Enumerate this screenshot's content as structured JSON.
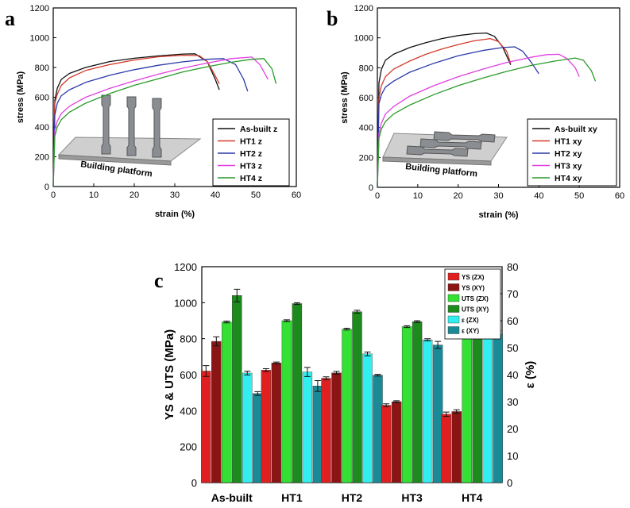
{
  "chart_data": [
    {
      "panel_label": "a",
      "type": "line",
      "xlabel": "strain (%)",
      "ylabel": "stress (MPa)",
      "xlim": [
        0,
        60
      ],
      "ylim": [
        0,
        1200
      ],
      "xticks": [
        0,
        10,
        20,
        30,
        40,
        50,
        60
      ],
      "yticks": [
        0,
        200,
        400,
        600,
        800,
        1000,
        1200
      ],
      "legend_position": "bottom-right",
      "inset_label": "Building platform",
      "series": [
        {
          "name": "As-built z",
          "color": "#111111",
          "x": [
            0,
            0.4,
            1,
            2,
            4,
            8,
            14,
            20,
            26,
            32,
            35,
            38,
            40,
            41
          ],
          "y": [
            0,
            580,
            660,
            720,
            760,
            800,
            840,
            862,
            878,
            890,
            892,
            840,
            720,
            650
          ]
        },
        {
          "name": "HT1 z",
          "color": "#d23a2a",
          "x": [
            0,
            0.4,
            1,
            2,
            4,
            8,
            14,
            20,
            26,
            32,
            36,
            38,
            39.5,
            41
          ],
          "y": [
            0,
            560,
            620,
            680,
            730,
            780,
            820,
            850,
            872,
            882,
            880,
            840,
            770,
            690
          ]
        },
        {
          "name": "HT2 z",
          "color": "#2a3aa8",
          "x": [
            0,
            0.4,
            1,
            2,
            4,
            8,
            14,
            20,
            26,
            32,
            38,
            42,
            45,
            47,
            48
          ],
          "y": [
            0,
            480,
            560,
            610,
            650,
            700,
            748,
            785,
            815,
            838,
            855,
            860,
            820,
            720,
            640
          ]
        },
        {
          "name": "HT3 z",
          "color": "#e040e0",
          "x": [
            0,
            0.4,
            1,
            2,
            4,
            8,
            14,
            20,
            26,
            32,
            38,
            44,
            49,
            51,
            53
          ],
          "y": [
            0,
            380,
            440,
            490,
            540,
            600,
            660,
            710,
            755,
            795,
            830,
            860,
            870,
            820,
            720
          ]
        },
        {
          "name": "HT4 z",
          "color": "#2a9a2a",
          "x": [
            0,
            0.4,
            1,
            2,
            4,
            8,
            14,
            20,
            26,
            32,
            38,
            44,
            49,
            52,
            54,
            55
          ],
          "y": [
            0,
            340,
            400,
            450,
            500,
            560,
            625,
            680,
            725,
            770,
            805,
            835,
            855,
            860,
            790,
            690
          ]
        }
      ]
    },
    {
      "panel_label": "b",
      "type": "line",
      "xlabel": "strain (%)",
      "ylabel": "stress (MPa)",
      "xlim": [
        0,
        60
      ],
      "ylim": [
        0,
        1200
      ],
      "xticks": [
        0,
        10,
        20,
        30,
        40,
        50,
        60
      ],
      "yticks": [
        0,
        200,
        400,
        600,
        800,
        1000,
        1200
      ],
      "legend_position": "bottom-right",
      "inset_label": "Building platform",
      "series": [
        {
          "name": "As-built xy",
          "color": "#111111",
          "x": [
            0,
            0.4,
            1,
            2,
            4,
            8,
            12,
            16,
            20,
            24,
            27,
            29,
            31,
            33
          ],
          "y": [
            0,
            700,
            790,
            850,
            890,
            935,
            968,
            995,
            1015,
            1028,
            1032,
            1010,
            940,
            820
          ]
        },
        {
          "name": "HT1 xy",
          "color": "#d23a2a",
          "x": [
            0,
            0.4,
            1,
            2,
            4,
            8,
            12,
            16,
            20,
            24,
            28,
            30,
            32,
            33
          ],
          "y": [
            0,
            600,
            680,
            740,
            790,
            845,
            890,
            925,
            955,
            980,
            995,
            975,
            910,
            830
          ]
        },
        {
          "name": "HT2 xy",
          "color": "#2a3aa8",
          "x": [
            0,
            0.4,
            1,
            2,
            4,
            8,
            14,
            20,
            26,
            31,
            34,
            36,
            38,
            40
          ],
          "y": [
            0,
            560,
            620,
            670,
            710,
            770,
            830,
            880,
            915,
            935,
            940,
            910,
            840,
            760
          ]
        },
        {
          "name": "HT3 xy",
          "color": "#e040e0",
          "x": [
            0,
            0.4,
            1,
            2,
            4,
            8,
            14,
            20,
            26,
            32,
            38,
            42,
            45,
            47,
            49,
            50
          ],
          "y": [
            0,
            360,
            430,
            490,
            540,
            610,
            680,
            740,
            790,
            835,
            870,
            888,
            890,
            860,
            800,
            740
          ]
        },
        {
          "name": "HT4 xy",
          "color": "#2a9a2a",
          "x": [
            0,
            0.4,
            1,
            2,
            4,
            8,
            14,
            20,
            26,
            32,
            38,
            44,
            49,
            51,
            53,
            54
          ],
          "y": [
            0,
            330,
            390,
            440,
            490,
            550,
            620,
            680,
            730,
            775,
            815,
            845,
            865,
            850,
            780,
            710
          ]
        }
      ]
    },
    {
      "panel_label": "c",
      "type": "bar",
      "categories": [
        "As-built",
        "HT1",
        "HT2",
        "HT3",
        "HT4"
      ],
      "ylabel": "YS & UTS (MPa)",
      "y2label": "ε (%)",
      "ylim": [
        0,
        1200
      ],
      "y2lim": [
        0,
        80
      ],
      "yticks": [
        0,
        200,
        400,
        600,
        800,
        1000,
        1200
      ],
      "y2ticks": [
        0,
        10,
        20,
        30,
        40,
        50,
        60,
        70,
        80
      ],
      "legend_position": "top-right",
      "series": [
        {
          "name": "YS (ZX)",
          "axis": "left",
          "color": "#e02020",
          "values": [
            620,
            625,
            580,
            430,
            380
          ],
          "errors": [
            30,
            8,
            8,
            8,
            12
          ]
        },
        {
          "name": "YS (XY)",
          "axis": "left",
          "color": "#8b1515",
          "values": [
            785,
            665,
            610,
            450,
            395
          ],
          "errors": [
            25,
            5,
            8,
            5,
            10
          ]
        },
        {
          "name": "UTS (ZX)",
          "axis": "left",
          "color": "#33e033",
          "values": [
            893,
            900,
            853,
            867,
            850
          ],
          "errors": [
            5,
            5,
            5,
            5,
            5
          ]
        },
        {
          "name": "UTS (XY)",
          "axis": "left",
          "color": "#1c8a1c",
          "values": [
            1040,
            995,
            950,
            895,
            885
          ],
          "errors": [
            35,
            5,
            8,
            5,
            20
          ]
        },
        {
          "name": "ε (ZX)",
          "axis": "right",
          "color": "#33eeee",
          "values": [
            40.6,
            41,
            47.7,
            52.9,
            54.6
          ],
          "errors": [
            0.7,
            1.7,
            0.7,
            0.4,
            1.3
          ]
        },
        {
          "name": "ε (XY)",
          "axis": "right",
          "color": "#1a8a96",
          "values": [
            33,
            35.8,
            39.8,
            51,
            55
          ],
          "errors": [
            0.7,
            2.0,
            0.3,
            1.3,
            1.3
          ]
        }
      ]
    }
  ]
}
